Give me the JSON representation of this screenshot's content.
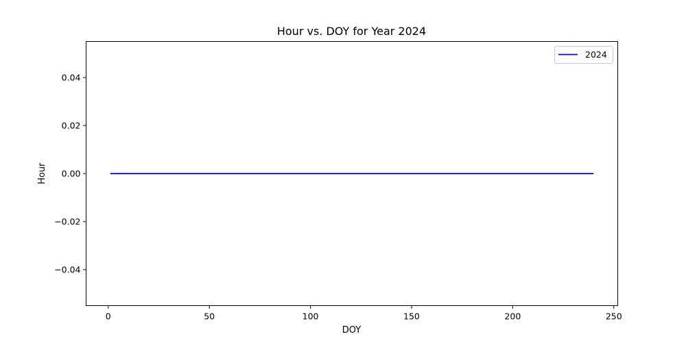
{
  "chart_data": {
    "type": "line",
    "title": "Hour vs. DOY for Year 2024",
    "xlabel": "DOY",
    "ylabel": "Hour",
    "xlim": [
      -10.95,
      251.95
    ],
    "ylim": [
      -0.055,
      0.055
    ],
    "xticks": [
      0,
      50,
      100,
      150,
      200,
      250
    ],
    "xtick_labels": [
      "0",
      "50",
      "100",
      "150",
      "200",
      "250"
    ],
    "yticks": [
      -0.04,
      -0.02,
      0.0,
      0.02,
      0.04
    ],
    "ytick_labels": [
      "−0.04",
      "−0.02",
      "0.00",
      "0.02",
      "0.04"
    ],
    "grid": false,
    "legend": {
      "position": "top-right",
      "entries": [
        "2024"
      ]
    },
    "series": [
      {
        "name": "2024",
        "color": "#0000ff",
        "x": [
          1,
          240
        ],
        "y": [
          0,
          0
        ]
      }
    ]
  }
}
